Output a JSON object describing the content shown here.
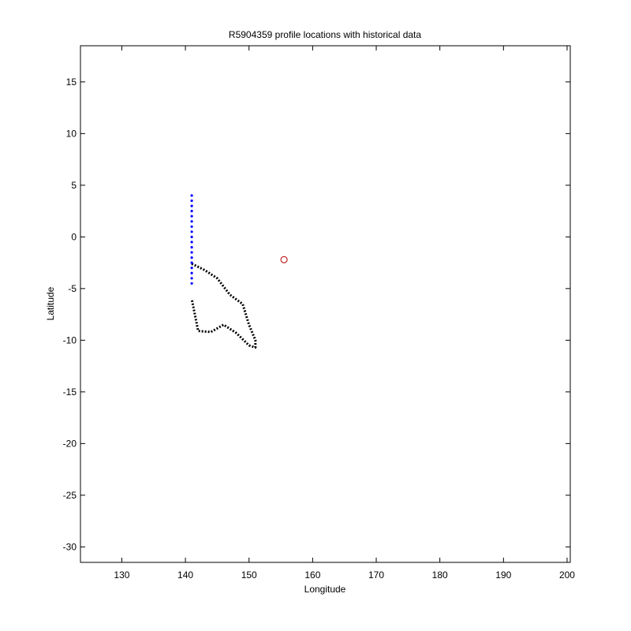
{
  "chart_data": {
    "type": "scatter",
    "title": "R5904359 profile locations with historical data",
    "xlabel": "Longitude",
    "ylabel": "Latitude",
    "xlim": [
      123.5,
      200.5
    ],
    "ylim": [
      -31.5,
      18.5
    ],
    "xticks": [
      130,
      140,
      150,
      160,
      170,
      180,
      190,
      200
    ],
    "yticks": [
      15,
      10,
      5,
      0,
      -5,
      -10,
      -15,
      -20,
      -25,
      -30
    ],
    "grid": false,
    "legend": "none",
    "colors": {
      "historical": "#0000ff",
      "coastline": "#000000"
    },
    "historical_tracks": [
      {
        "name": "",
        "lon": [
          141,
          141,
          141,
          141,
          141,
          141,
          141,
          141,
          141,
          141,
          141,
          141,
          141,
          141,
          141,
          141,
          141,
          141
        ],
        "lat": [
          4,
          3.5,
          3,
          2.5,
          2,
          1.5,
          1,
          0.5,
          0,
          -0.5,
          -1,
          -1.5,
          -2,
          -2.5,
          -3,
          -3.5,
          -4,
          -4.5
        ]
      }
    ],
    "coastlines": [
      {
        "name": "",
        "lon": [
          141,
          143,
          145,
          147,
          149,
          150,
          151,
          151,
          150,
          148,
          146,
          144,
          142,
          141
        ],
        "lat": [
          -2.6,
          -3.2,
          -4,
          -5.6,
          -6.5,
          -8.5,
          -10,
          -10.7,
          -10.5,
          -9.3,
          -8.5,
          -9.2,
          -9.1,
          -6
        ]
      }
    ],
    "float_profiles": [
      {
        "lon": 155.5,
        "lat": -2.2,
        "color": "#b40000"
      }
    ]
  }
}
